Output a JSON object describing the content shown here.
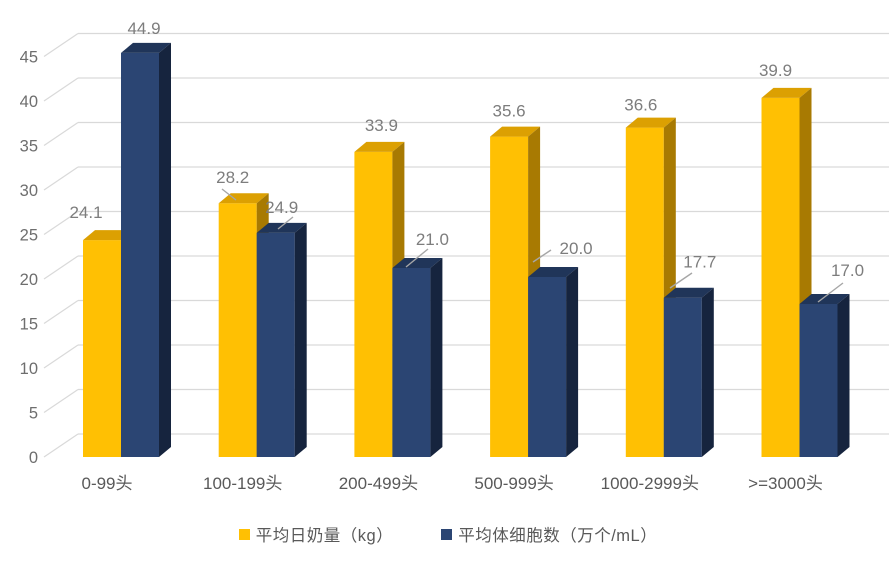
{
  "chart_data": {
    "type": "bar",
    "style": "3d-clustered-column",
    "title": "",
    "categories": [
      "0-99头",
      "100-199头",
      "200-499头",
      "500-999头",
      "1000-2999头",
      ">=3000头"
    ],
    "series": [
      {
        "name": "平均日奶量（kg）",
        "values": [
          24.1,
          28.2,
          33.9,
          35.6,
          36.6,
          39.9
        ],
        "color": "#FFC003",
        "color_top": "#DCA002",
        "color_side": "#A87A02"
      },
      {
        "name": "平均体细胞数（万个/mL）",
        "values": [
          44.9,
          24.9,
          21.0,
          20.0,
          17.7,
          17.0
        ],
        "color": "#2B4573",
        "color_top": "#203559",
        "color_side": "#16243E"
      }
    ],
    "ylim": [
      0,
      45
    ],
    "yticks": [
      0,
      5,
      10,
      15,
      20,
      25,
      30,
      35,
      40,
      45
    ],
    "grid": true,
    "data_labels": true,
    "label_decimals": 1,
    "legend_position": "bottom",
    "gridline_color": "#D9D9D9",
    "axis_label_color": "#6E6E6E",
    "category_label_color": "#595959",
    "data_label_color": "#7D7D7D",
    "leader_line_color": "#A6A6A6",
    "background_color": "#FFFFFF"
  }
}
